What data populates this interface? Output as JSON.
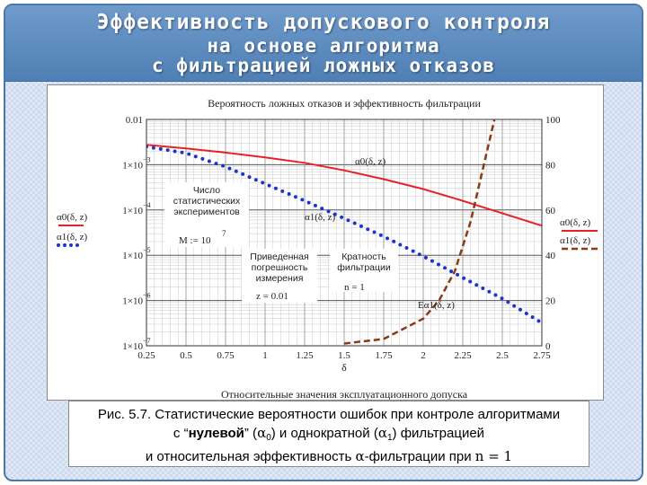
{
  "slide": {
    "title_lines": [
      "Эффективность допускового контроля",
      "на основе алгоритма",
      "с фильтрацией ложных отказов"
    ]
  },
  "chart_data": {
    "type": "line",
    "title": "Вероятность ложных отказов и эффективность фильтрации",
    "xlabel": "δ",
    "xlabel_caption": "Относительные значения эксплуатационного допуска",
    "x_ticks": [
      "0.25",
      "0.5",
      "0.75",
      "1",
      "1.25",
      "1.5",
      "1.75",
      "2",
      "2.25",
      "2.5",
      "2.75"
    ],
    "xlim": [
      0.25,
      2.75
    ],
    "y_left": {
      "scale": "log",
      "ylim": [
        1e-07,
        0.01
      ],
      "tick_values": [
        1e-07,
        1e-06,
        1e-05,
        0.0001,
        0.001,
        0.01
      ],
      "tick_labels": [
        "1×10",
        "1×10",
        "1×10",
        "1×10",
        "1×10",
        "0.01"
      ],
      "tick_exponents": [
        "−7",
        "−6",
        "−5",
        "−4",
        "−3",
        ""
      ]
    },
    "y_right": {
      "scale": "linear",
      "ylim": [
        0,
        100
      ],
      "tick_values": [
        0,
        20,
        40,
        60,
        80,
        100
      ],
      "tick_labels": [
        "0",
        "20",
        "40",
        "60",
        "80",
        "100"
      ]
    },
    "series": [
      {
        "name": "α0(δ, z)",
        "axis": "left",
        "color": "#e8202a",
        "style": "solid",
        "x": [
          0.25,
          0.5,
          0.75,
          1.0,
          1.25,
          1.5,
          1.75,
          2.0,
          2.2,
          2.5,
          2.75
        ],
        "y": [
          0.00275,
          0.0023,
          0.00185,
          0.00145,
          0.0011,
          0.00075,
          0.00048,
          0.00029,
          0.00018,
          8.5e-05,
          4.5e-05
        ]
      },
      {
        "name": "α1(δ, z)",
        "axis": "left",
        "color": "#1a35c8",
        "style": "dotted",
        "x": [
          0.25,
          0.5,
          0.75,
          1.0,
          1.25,
          1.5,
          1.75,
          2.0,
          2.25,
          2.5,
          2.75
        ],
        "y": [
          0.0025,
          0.0018,
          0.0009,
          0.00038,
          0.00016,
          6.5e-05,
          2.6e-05,
          9.5e-06,
          3.2e-06,
          1.1e-06,
          3.2e-07
        ]
      },
      {
        "name": "Eα1(δ, z)",
        "axis": "right",
        "color": "#8b3a14",
        "style": "dashed",
        "x": [
          1.5,
          1.75,
          2.0,
          2.1,
          2.2,
          2.3,
          2.4,
          2.45
        ],
        "y": [
          1,
          3,
          12,
          20,
          33,
          55,
          85,
          100
        ]
      }
    ],
    "legend_left": [
      "α0(δ, z)",
      "α1(δ, z)"
    ],
    "legend_right": [
      "α0(δ, z)",
      "α1(δ, z)"
    ],
    "annotations": {
      "box1": [
        "Число",
        "статистических",
        "экспериментов"
      ],
      "m_value": "M := 10",
      "m_exponent": "7",
      "box2": [
        "Приведенная",
        "погрешность",
        "измерения"
      ],
      "z_value": "z = 0.01",
      "box3": [
        "Кратность",
        "фильтрации"
      ],
      "n_value": "n = 1",
      "label_a0": "α0(δ, z)",
      "label_a1": "α1(δ, z)",
      "label_ea1": "Eα1(δ, z)"
    },
    "grid": true
  },
  "caption": {
    "line1": "Рис. 5.7. Статистические вероятности ошибок при контроле алгоритмами",
    "line2_a": "с “",
    "line2_bold": "нулевой",
    "line2_b": "” (",
    "line2_sym0": "α",
    "line2_sub0": "0",
    "line2_c": ") и однократной (",
    "line2_sym1": "α",
    "line2_sub1": "1",
    "line2_d": ") фильтрацией",
    "line3_a": "и относительная эффективность ",
    "line3_sym": "α",
    "line3_b": "-фильтрации при ",
    "line3_n": "n = 1"
  }
}
